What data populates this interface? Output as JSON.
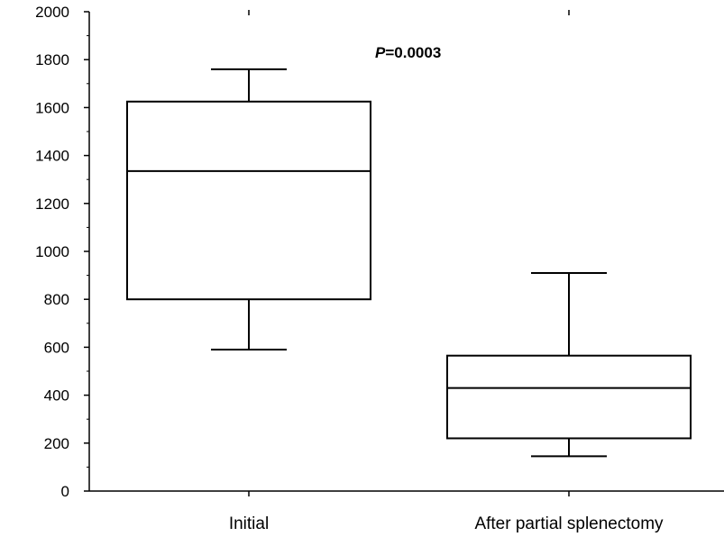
{
  "chart_data": {
    "type": "box",
    "categories": [
      "Initial",
      "After partial splenectomy"
    ],
    "boxes": [
      {
        "name": "Initial",
        "min": 590,
        "q1": 800,
        "median": 1335,
        "q3": 1625,
        "max": 1760
      },
      {
        "name": "After partial splenectomy",
        "min": 145,
        "q1": 220,
        "median": 430,
        "q3": 565,
        "max": 910
      }
    ],
    "title": "",
    "xlabel": "",
    "ylabel": "",
    "ylim": [
      0,
      2000
    ],
    "yticks": [
      "0",
      "200",
      "400",
      "600",
      "800",
      "1000",
      "1200",
      "1400",
      "1600",
      "1800",
      "2000"
    ],
    "annotation": {
      "italic_part": "P",
      "rest": "=0.0003"
    },
    "grid": false,
    "legend": "none",
    "color": "#000000"
  }
}
